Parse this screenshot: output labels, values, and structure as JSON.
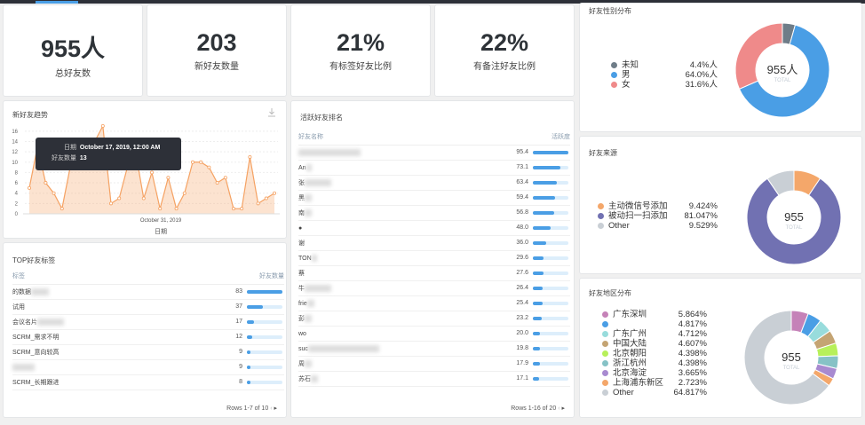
{
  "stats": [
    {
      "value": "955人",
      "label": "总好友数"
    },
    {
      "value": "203",
      "label": "新好友数量"
    },
    {
      "value": "21%",
      "label": "有标签好友比例"
    },
    {
      "value": "22%",
      "label": "有备注好友比例"
    }
  ],
  "trend": {
    "title": "新好友趋势",
    "xlabel": "日期",
    "xtick": "October 31, 2019",
    "yticks": [
      0,
      2,
      4,
      6,
      8,
      10,
      12,
      14,
      16
    ],
    "tooltip": {
      "date_label": "日期",
      "date": "October 17, 2019, 12:00 AM",
      "count_label": "好友数量",
      "count": "13"
    },
    "color": "#f5a263"
  },
  "chart_data": {
    "type": "area",
    "x_start": "2019-10-16",
    "ylim": [
      0,
      17
    ],
    "values": [
      5,
      13,
      6,
      4,
      1,
      9,
      12,
      13,
      14,
      17,
      2,
      3,
      9,
      12,
      3,
      8,
      1,
      7,
      1,
      4,
      10,
      10,
      9,
      6,
      7,
      1,
      1,
      11,
      2,
      3,
      4
    ]
  },
  "tags": {
    "title": "TOP好友标签",
    "col_label": "标签",
    "col_value": "好友数量",
    "max": 83,
    "rows": [
      {
        "name": "的数据",
        "value": 83
      },
      {
        "name": "试用",
        "value": 37
      },
      {
        "name": "会议名片",
        "value": 17
      },
      {
        "name": "SCRM_需求不明",
        "value": 12
      },
      {
        "name": "SCRM_意向较高",
        "value": 9
      },
      {
        "name": "",
        "value": 9
      },
      {
        "name": "SCRM_长期跟进",
        "value": 8
      }
    ],
    "pagination": "Rows 1-7 of 10"
  },
  "active": {
    "title": "活跃好友排名",
    "col_label": "好友名称",
    "col_value": "活跃度",
    "max": 95.4,
    "rows": [
      {
        "name": "",
        "value": "95.4"
      },
      {
        "name": "An",
        "value": "73.1"
      },
      {
        "name": "张",
        "value": "63.4"
      },
      {
        "name": "黑",
        "value": "59.4"
      },
      {
        "name": "南",
        "value": "56.8"
      },
      {
        "name": "●",
        "value": "48.0"
      },
      {
        "name": "谢",
        "value": "36.0"
      },
      {
        "name": "TON",
        "value": "29.6"
      },
      {
        "name": "蔡",
        "value": "27.6"
      },
      {
        "name": "牛",
        "value": "26.4"
      },
      {
        "name": "frie",
        "value": "25.4"
      },
      {
        "name": "彭",
        "value": "23.2"
      },
      {
        "name": "wo",
        "value": "20.0"
      },
      {
        "name": "suc",
        "value": "19.8"
      },
      {
        "name": "周",
        "value": "17.9"
      },
      {
        "name": "苏石",
        "value": "17.1"
      }
    ],
    "pagination": "Rows 1-16 of 20"
  },
  "gender": {
    "title": "好友性别分布",
    "total": "955人",
    "total_label": "TOTAL",
    "items": [
      {
        "name": "未知",
        "pct": "4.4%人",
        "value": 4.4,
        "color": "#6f7d88"
      },
      {
        "name": "男",
        "pct": "64.0%人",
        "value": 64.0,
        "color": "#4a9ee5"
      },
      {
        "name": "女",
        "pct": "31.6%人",
        "value": 31.6,
        "color": "#ef8a8a"
      }
    ]
  },
  "source": {
    "title": "好友来源",
    "total": "955",
    "total_label": "TOTAL",
    "items": [
      {
        "name": "主动微信号添加",
        "pct": "9.424%",
        "value": 9.424,
        "color": "#f4a76a"
      },
      {
        "name": "被动扫一扫添加",
        "pct": "81.047%",
        "value": 81.047,
        "color": "#7171b2"
      },
      {
        "name": "Other",
        "pct": "9.529%",
        "value": 9.529,
        "color": "#c9cfd5"
      }
    ]
  },
  "region": {
    "title": "好友地区分布",
    "total": "955",
    "total_label": "TOTAL",
    "items": [
      {
        "name": "广东深圳",
        "pct": "5.864%",
        "value": 5.864,
        "color": "#c582b8"
      },
      {
        "name": "",
        "pct": "4.817%",
        "value": 4.817,
        "color": "#4a9ee5"
      },
      {
        "name": "广东广州",
        "pct": "4.712%",
        "value": 4.712,
        "color": "#98dcdc"
      },
      {
        "name": "中国大陆",
        "pct": "4.607%",
        "value": 4.607,
        "color": "#c4a473"
      },
      {
        "name": "北京朝阳",
        "pct": "4.398%",
        "value": 4.398,
        "color": "#b7f05a"
      },
      {
        "name": "浙江杭州",
        "pct": "4.398%",
        "value": 4.398,
        "color": "#86c2c6"
      },
      {
        "name": "北京海淀",
        "pct": "3.665%",
        "value": 3.665,
        "color": "#a88ad0"
      },
      {
        "name": "上海浦东新区",
        "pct": "2.723%",
        "value": 2.723,
        "color": "#f4a76a"
      },
      {
        "name": "Other",
        "pct": "64.817%",
        "value": 64.817,
        "color": "#c9cfd5"
      }
    ]
  }
}
